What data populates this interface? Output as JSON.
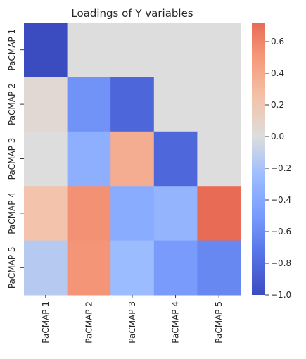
{
  "chart_data": {
    "type": "heatmap",
    "title": "Loadings of Y variables",
    "xlabel": "",
    "ylabel": "",
    "x_categories": [
      "PaCMAP 1",
      "PaCMAP 2",
      "PaCMAP 3",
      "PaCMAP 4",
      "PaCMAP 5"
    ],
    "y_categories": [
      "PaCMAP 1",
      "PaCMAP 2",
      "PaCMAP 3",
      "PaCMAP 4",
      "PaCMAP 5"
    ],
    "values": [
      [
        -1.0,
        0.0,
        0.0,
        0.0,
        0.0
      ],
      [
        0.05,
        -0.55,
        -0.83,
        0.0,
        0.0
      ],
      [
        0.0,
        -0.35,
        0.38,
        -0.82,
        0.0
      ],
      [
        0.24,
        0.54,
        -0.37,
        -0.3,
        0.72
      ],
      [
        -0.15,
        0.52,
        -0.25,
        -0.5,
        -0.62
      ]
    ],
    "colormap": "coolwarm",
    "vmin": -1.0,
    "vmax": 0.72,
    "colorbar_ticks": [
      -1.0,
      -0.8,
      -0.6,
      -0.4,
      -0.2,
      0.0,
      0.2,
      0.4,
      0.6
    ],
    "colorbar_tick_labels": [
      "−1.0",
      "−0.8",
      "−0.6",
      "−0.4",
      "−0.2",
      "0.0",
      "0.2",
      "0.4",
      "0.6"
    ],
    "grid": false
  }
}
